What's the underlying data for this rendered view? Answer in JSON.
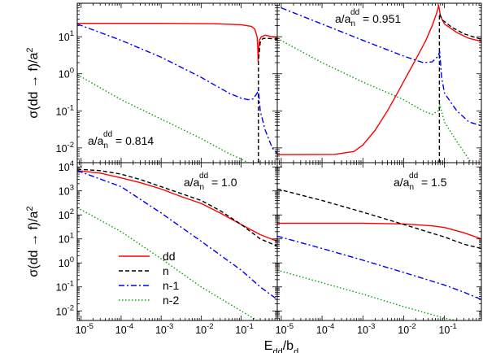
{
  "figure": {
    "ylabel_text": "σ(dd → f)/a",
    "ylabel_sup": "2",
    "xlabel_main": "E",
    "xlabel_sub1": "dd",
    "xlabel_mid": "/b",
    "xlabel_sub2": "d"
  },
  "legend": [
    {
      "label": "dd",
      "color": "#ff0000",
      "dash": "solid"
    },
    {
      "label": "n",
      "color": "#000000",
      "dash": "dashed"
    },
    {
      "label": "n-1",
      "color": "#0000ff",
      "dash": "dashdot"
    },
    {
      "label": "n-2",
      "color": "#00a000",
      "dash": "dotted"
    }
  ],
  "chart_data": [
    {
      "type": "line",
      "panel": "top-left",
      "yscale": "log",
      "xscale": "log",
      "annotation": {
        "text_pre": "a/a",
        "sub": "n",
        "sup": "dd",
        "text_post": " = 0.814"
      },
      "xlim": [
        8e-06,
        0.8
      ],
      "ylim": [
        0.004,
        80
      ],
      "yticks": [
        0.01,
        0.1,
        1,
        10
      ],
      "ytick_labels": [
        {
          "base": "10",
          "exp": "-2"
        },
        {
          "base": "10",
          "exp": "-1"
        },
        {
          "base": "10",
          "exp": "0"
        },
        {
          "base": "10",
          "exp": "1"
        }
      ],
      "vline": {
        "x": 0.27,
        "color": "#000000"
      },
      "series": [
        {
          "name": "dd",
          "color": "#ff0000",
          "dash": "solid",
          "points": [
            [
              8e-06,
              23
            ],
            [
              0.001,
              23
            ],
            [
              0.02,
              22.5
            ],
            [
              0.1,
              21
            ],
            [
              0.18,
              19
            ],
            [
              0.22,
              16
            ],
            [
              0.25,
              10
            ],
            [
              0.26,
              5
            ],
            [
              0.265,
              2.2
            ],
            [
              0.272,
              4
            ],
            [
              0.285,
              8
            ],
            [
              0.32,
              10
            ],
            [
              0.4,
              11
            ],
            [
              0.6,
              10
            ],
            [
              0.8,
              9.5
            ]
          ]
        },
        {
          "name": "n",
          "color": "#000000",
          "dash": "dashed",
          "points": [
            [
              0.27,
              0.004
            ],
            [
              0.27,
              2.2
            ],
            [
              0.3,
              7
            ],
            [
              0.35,
              9
            ],
            [
              0.5,
              9
            ],
            [
              0.8,
              8.5
            ]
          ]
        },
        {
          "name": "n-1",
          "color": "#0000ff",
          "dash": "dashdot",
          "points": [
            [
              8e-06,
              22
            ],
            [
              0.0001,
              8
            ],
            [
              0.001,
              2.8
            ],
            [
              0.01,
              0.8
            ],
            [
              0.05,
              0.3
            ],
            [
              0.1,
              0.22
            ],
            [
              0.15,
              0.2
            ],
            [
              0.2,
              0.21
            ],
            [
              0.25,
              0.3
            ],
            [
              0.27,
              0.38
            ],
            [
              0.3,
              0.1
            ],
            [
              0.4,
              0.03
            ],
            [
              0.6,
              0.01
            ],
            [
              0.8,
              0.007
            ]
          ]
        },
        {
          "name": "n-2",
          "color": "#00a000",
          "dash": "dotted",
          "points": [
            [
              8e-06,
              0.95
            ],
            [
              0.0001,
              0.2
            ],
            [
              0.001,
              0.06
            ],
            [
              0.01,
              0.018
            ],
            [
              0.05,
              0.007
            ],
            [
              0.1,
              0.005
            ],
            [
              0.15,
              0.004
            ]
          ]
        }
      ]
    },
    {
      "type": "line",
      "panel": "top-right",
      "yscale": "log",
      "xscale": "log",
      "annotation": {
        "text_pre": "a/a",
        "sub": "n",
        "sup": "dd",
        "text_post": " = 0.951"
      },
      "xlim": [
        8e-06,
        0.8
      ],
      "ylim": [
        0.004,
        80
      ],
      "vline": {
        "x": 0.075,
        "color": "#000000"
      },
      "series": [
        {
          "name": "dd",
          "color": "#ff0000",
          "dash": "solid",
          "points": [
            [
              8e-06,
              0.0066
            ],
            [
              0.0002,
              0.0067
            ],
            [
              0.0006,
              0.008
            ],
            [
              0.001,
              0.012
            ],
            [
              0.002,
              0.03
            ],
            [
              0.004,
              0.1
            ],
            [
              0.007,
              0.3
            ],
            [
              0.012,
              0.9
            ],
            [
              0.02,
              2.5
            ],
            [
              0.035,
              8
            ],
            [
              0.05,
              20
            ],
            [
              0.065,
              45
            ],
            [
              0.072,
              70
            ],
            [
              0.08,
              35
            ],
            [
              0.1,
              22
            ],
            [
              0.2,
              13
            ],
            [
              0.4,
              9
            ],
            [
              0.8,
              7.5
            ]
          ]
        },
        {
          "name": "n",
          "color": "#000000",
          "dash": "dashed",
          "points": [
            [
              0.075,
              0.004
            ],
            [
              0.075,
              42
            ],
            [
              0.09,
              28
            ],
            [
              0.15,
              18
            ],
            [
              0.3,
              12
            ],
            [
              0.5,
              10
            ],
            [
              0.8,
              8.5
            ]
          ]
        },
        {
          "name": "n-1",
          "color": "#0000ff",
          "dash": "dashdot",
          "points": [
            [
              1e-05,
              60
            ],
            [
              0.0001,
              22
            ],
            [
              0.001,
              8
            ],
            [
              0.01,
              3
            ],
            [
              0.03,
              2
            ],
            [
              0.05,
              2.1
            ],
            [
              0.07,
              3
            ],
            [
              0.076,
              4
            ],
            [
              0.085,
              0.8
            ],
            [
              0.1,
              0.3
            ],
            [
              0.2,
              0.1
            ],
            [
              0.4,
              0.05
            ],
            [
              0.8,
              0.04
            ]
          ]
        },
        {
          "name": "n-2",
          "color": "#00a000",
          "dash": "dotted",
          "points": [
            [
              8e-06,
              9
            ],
            [
              0.0001,
              2
            ],
            [
              0.001,
              0.6
            ],
            [
              0.01,
              0.2
            ],
            [
              0.03,
              0.1
            ],
            [
              0.05,
              0.08
            ],
            [
              0.07,
              0.1
            ],
            [
              0.076,
              0.15
            ],
            [
              0.1,
              0.05
            ],
            [
              0.2,
              0.015
            ],
            [
              0.35,
              0.006
            ],
            [
              0.45,
              0.004
            ]
          ]
        }
      ]
    },
    {
      "type": "line",
      "panel": "bottom-left",
      "yscale": "log",
      "xscale": "log",
      "annotation": {
        "text_pre": "a/a",
        "sub": "n",
        "sup": "dd",
        "text_post": " = 1.0"
      },
      "xlim": [
        8e-06,
        0.8
      ],
      "ylim": [
        0.004,
        15000
      ],
      "yticks": [
        0.01,
        0.1,
        1,
        10,
        100,
        1000,
        10000
      ],
      "ytick_labels": [
        {
          "base": "10",
          "exp": "-2"
        },
        {
          "base": "10",
          "exp": "-1"
        },
        {
          "base": "10",
          "exp": "0"
        },
        {
          "base": "10",
          "exp": "1"
        },
        {
          "base": "10",
          "exp": "2"
        },
        {
          "base": "10",
          "exp": "3"
        },
        {
          "base": "10",
          "exp": "4"
        }
      ],
      "xticks": [
        1e-05,
        0.0001,
        0.001,
        0.01,
        0.1
      ],
      "xtick_labels": [
        {
          "base": "10",
          "exp": "-5"
        },
        {
          "base": "10",
          "exp": "-4"
        },
        {
          "base": "10",
          "exp": "-3"
        },
        {
          "base": "10",
          "exp": "-2"
        },
        {
          "base": "10",
          "exp": "-1"
        }
      ],
      "series": [
        {
          "name": "dd",
          "color": "#ff0000",
          "dash": "solid",
          "points": [
            [
              8e-06,
              7000
            ],
            [
              3e-05,
              5500
            ],
            [
              0.0001,
              3500
            ],
            [
              0.0003,
              2200
            ],
            [
              0.001,
              1200
            ],
            [
              0.003,
              600
            ],
            [
              0.01,
              300
            ],
            [
              0.03,
              120
            ],
            [
              0.1,
              40
            ],
            [
              0.3,
              15
            ],
            [
              0.8,
              8
            ]
          ]
        },
        {
          "name": "n",
          "color": "#000000",
          "dash": "dashed",
          "points": [
            [
              8e-06,
              8000
            ],
            [
              3e-05,
              7000
            ],
            [
              0.0001,
              5000
            ],
            [
              0.0003,
              3000
            ],
            [
              0.001,
              1500
            ],
            [
              0.003,
              800
            ],
            [
              0.01,
              400
            ],
            [
              0.03,
              150
            ],
            [
              0.1,
              40
            ],
            [
              0.3,
              10
            ],
            [
              0.8,
              5
            ]
          ]
        },
        {
          "name": "n-1",
          "color": "#0000ff",
          "dash": "dashdot",
          "points": [
            [
              8e-06,
              7000
            ],
            [
              0.0001,
              1500
            ],
            [
              0.001,
              120
            ],
            [
              0.01,
              8
            ],
            [
              0.1,
              0.5
            ],
            [
              0.3,
              0.1
            ],
            [
              0.8,
              0.03
            ]
          ]
        },
        {
          "name": "n-2",
          "color": "#00a000",
          "dash": "dotted",
          "points": [
            [
              8e-06,
              200
            ],
            [
              0.0001,
              20
            ],
            [
              0.001,
              1.5
            ],
            [
              0.01,
              0.1
            ],
            [
              0.1,
              0.01
            ],
            [
              0.25,
              0.004
            ]
          ]
        }
      ]
    },
    {
      "type": "line",
      "panel": "bottom-right",
      "yscale": "log",
      "xscale": "log",
      "annotation": {
        "text_pre": "a/a",
        "sub": "n",
        "sup": "dd",
        "text_post": " = 1.5"
      },
      "xlim": [
        8e-06,
        0.8
      ],
      "ylim": [
        0.004,
        15000
      ],
      "xticks": [
        1e-05,
        0.0001,
        0.001,
        0.01,
        0.1
      ],
      "xtick_labels": [
        {
          "base": "10",
          "exp": "-5"
        },
        {
          "base": "10",
          "exp": "-4"
        },
        {
          "base": "10",
          "exp": "-3"
        },
        {
          "base": "10",
          "exp": "-2"
        },
        {
          "base": "10",
          "exp": "-1"
        }
      ],
      "series": [
        {
          "name": "dd",
          "color": "#ff0000",
          "dash": "solid",
          "points": [
            [
              8e-06,
              45
            ],
            [
              0.001,
              45
            ],
            [
              0.01,
              42
            ],
            [
              0.05,
              35
            ],
            [
              0.1,
              30
            ],
            [
              0.3,
              18
            ],
            [
              0.8,
              10
            ]
          ]
        },
        {
          "name": "n",
          "color": "#000000",
          "dash": "dashed",
          "points": [
            [
              8e-06,
              1200
            ],
            [
              0.0001,
              400
            ],
            [
              0.001,
              130
            ],
            [
              0.01,
              40
            ],
            [
              0.1,
              12
            ],
            [
              0.3,
              6
            ],
            [
              0.8,
              4
            ]
          ]
        },
        {
          "name": "n-1",
          "color": "#0000ff",
          "dash": "dashdot",
          "points": [
            [
              8e-06,
              13
            ],
            [
              0.0001,
              4
            ],
            [
              0.001,
              1.3
            ],
            [
              0.01,
              0.4
            ],
            [
              0.1,
              0.12
            ],
            [
              0.3,
              0.06
            ],
            [
              0.8,
              0.03
            ]
          ]
        },
        {
          "name": "n-2",
          "color": "#00a000",
          "dash": "dotted",
          "points": [
            [
              8e-06,
              0.5
            ],
            [
              0.0001,
              0.15
            ],
            [
              0.001,
              0.05
            ],
            [
              0.01,
              0.015
            ],
            [
              0.1,
              0.005
            ],
            [
              0.2,
              0.004
            ]
          ]
        }
      ]
    }
  ]
}
